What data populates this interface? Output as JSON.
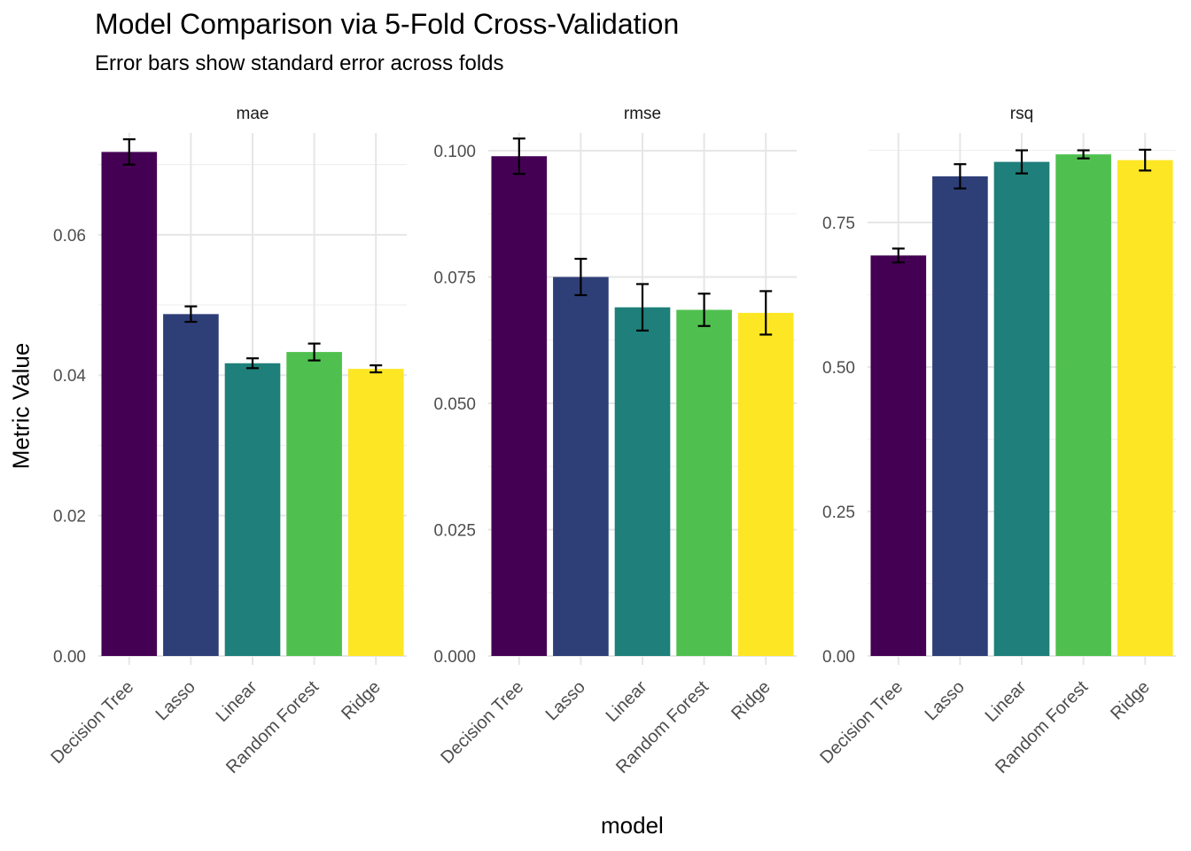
{
  "title": "Model Comparison via 5-Fold Cross-Validation",
  "subtitle": "Error bars show standard error across folds",
  "xlabel": "model",
  "ylabel": "Metric Value",
  "chart_data": {
    "type": "bar",
    "facet_type": "facet_wrap (free y scales)",
    "categories": [
      "Decision Tree",
      "Lasso",
      "Linear",
      "Random Forest",
      "Ridge"
    ],
    "colors": [
      "#440154",
      "#2E3F78",
      "#1F7F7A",
      "#4FC04F",
      "#FDE725"
    ],
    "grid": true,
    "legend": "none",
    "error_bars": "standard error",
    "panels": [
      {
        "strip": "mae",
        "ylim": [
          0,
          0.0745
        ],
        "yticks": [
          0,
          0.02,
          0.04,
          0.06
        ],
        "ytick_labels": [
          "0.00",
          "0.02",
          "0.04",
          "0.06"
        ],
        "values": [
          0.0718,
          0.0487,
          0.0417,
          0.0433,
          0.0409
        ],
        "se": [
          0.0018,
          0.0011,
          0.0007,
          0.0012,
          0.0005
        ]
      },
      {
        "strip": "rmse",
        "ylim": [
          0,
          0.1035
        ],
        "yticks": [
          0,
          0.025,
          0.05,
          0.075,
          0.1
        ],
        "ytick_labels": [
          "0.000",
          "0.025",
          "0.050",
          "0.075",
          "0.100"
        ],
        "values": [
          0.0989,
          0.075,
          0.069,
          0.0685,
          0.0679
        ],
        "se": [
          0.0035,
          0.0036,
          0.0046,
          0.0032,
          0.0043
        ]
      },
      {
        "strip": "rsq",
        "ylim": [
          0,
          0.905
        ],
        "yticks": [
          0,
          0.25,
          0.5,
          0.75
        ],
        "ytick_labels": [
          "0.00",
          "0.25",
          "0.50",
          "0.75"
        ],
        "values": [
          0.693,
          0.83,
          0.855,
          0.868,
          0.858
        ],
        "se": [
          0.012,
          0.021,
          0.02,
          0.007,
          0.018
        ]
      }
    ]
  }
}
